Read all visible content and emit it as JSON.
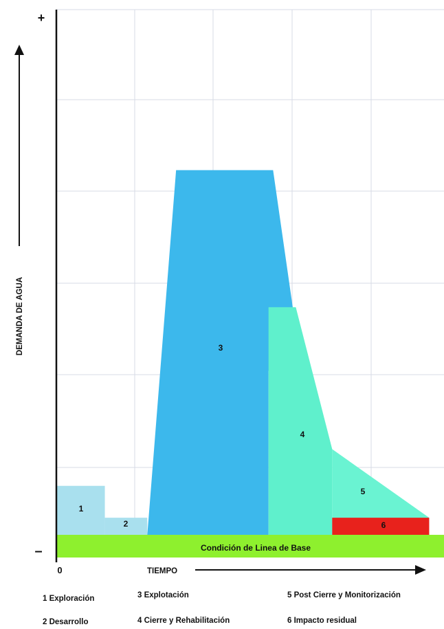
{
  "chart_data": {
    "type": "area",
    "title": "",
    "xlabel": "TIEMPO",
    "ylabel": "DEMANDA DE AGUA",
    "y_axis_top_label": "+",
    "y_axis_bottom_label": "–",
    "x_origin_label": "0",
    "grid": true,
    "baseline": {
      "label": "Condición de Linea de Base",
      "color": "#8ef02e"
    },
    "phases": [
      {
        "id": "1",
        "name": "Exploración",
        "color": "#a9e0ee",
        "points": [
          [
            0,
            0
          ],
          [
            0,
            2
          ],
          [
            1.6,
            2
          ],
          [
            1.6,
            0
          ]
        ]
      },
      {
        "id": "2",
        "name": "Desarrollo",
        "color": "#a9e0ee",
        "points": [
          [
            1.6,
            0
          ],
          [
            1.6,
            0.7
          ],
          [
            3.0,
            0.7
          ],
          [
            3.0,
            0
          ]
        ]
      },
      {
        "id": "3",
        "name": "Explotación",
        "color": "#3cb8ec",
        "points": [
          [
            3.0,
            0
          ],
          [
            3.95,
            14.9
          ],
          [
            7.15,
            14.9
          ],
          [
            8.1,
            6.7
          ],
          [
            7.0,
            6.7
          ],
          [
            7.0,
            0
          ]
        ]
      },
      {
        "id": "4",
        "name": "Cierre y Rehabilitación",
        "color": "#5ff0cc",
        "points": [
          [
            7.0,
            0
          ],
          [
            7.0,
            9.3
          ],
          [
            7.9,
            9.3
          ],
          [
            9.1,
            3.5
          ],
          [
            9.1,
            0
          ]
        ]
      },
      {
        "id": "5",
        "name": "Post Cierre y Monitorización",
        "color": "#6af3d2",
        "points": [
          [
            9.1,
            0
          ],
          [
            9.1,
            3.5
          ],
          [
            12.3,
            0.7
          ],
          [
            12.3,
            0
          ]
        ]
      },
      {
        "id": "6",
        "name": "Impacto residual",
        "color": "#e8221c",
        "points": [
          [
            9.1,
            0
          ],
          [
            9.1,
            0.7
          ],
          [
            12.3,
            0.7
          ],
          [
            12.3,
            0
          ]
        ]
      }
    ],
    "legend": [
      {
        "id": "1",
        "text": "1 Exploración"
      },
      {
        "id": "2",
        "text": "2 Desarrollo"
      },
      {
        "id": "3",
        "text": "3 Explotación"
      },
      {
        "id": "4",
        "text": "4 Cierre y Rehabilitación"
      },
      {
        "id": "5",
        "text": "5 Post Cierre y Monitorización"
      },
      {
        "id": "6",
        "text": "6 Impacto residual"
      }
    ]
  }
}
